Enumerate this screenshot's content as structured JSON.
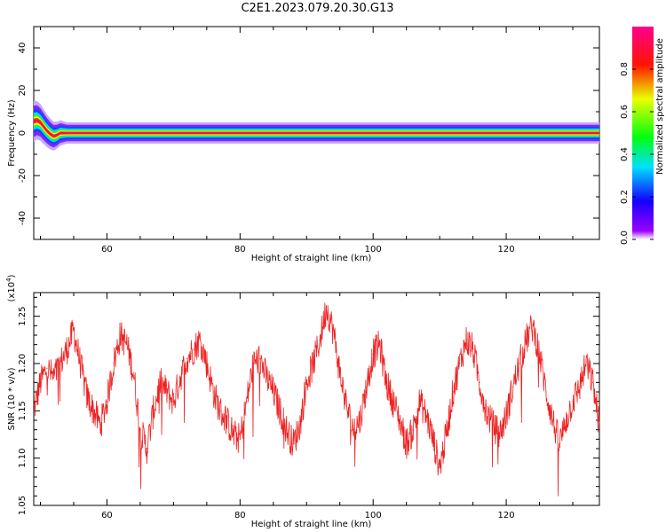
{
  "figure": {
    "title": "C2E1.2023.079.20.30.G13"
  },
  "chart_data": [
    {
      "type": "heatmap",
      "title": "C2E1.2023.079.20.30.G13",
      "xlabel": "Height of straight line (km)",
      "ylabel": "Frequency (Hz)",
      "xlim": [
        49.0,
        134.0
      ],
      "ylim": [
        -50,
        50
      ],
      "xticks": [
        60,
        80,
        100,
        120
      ],
      "yticks": [
        40,
        20,
        0,
        -20,
        -40
      ],
      "colorbar": {
        "label": "Normalized spectral amplitude",
        "range": [
          0.0,
          1.0
        ],
        "ticks": [
          0.0,
          0.2,
          0.4,
          0.6,
          0.8
        ],
        "colormap": "rainbow (violet-blue-cyan-green-yellow-red-magenta)"
      },
      "ridge_frequency": {
        "x": [
          49.0,
          49.5,
          50.0,
          50.5,
          51.0,
          51.5,
          52.0,
          52.5,
          53.0,
          54.0,
          56.0,
          60.0,
          80.0,
          100.0,
          120.0,
          134.0
        ],
        "y": [
          5.5,
          6.0,
          5.0,
          3.0,
          1.0,
          -0.5,
          -1.5,
          -1.0,
          0.0,
          0.0,
          0.0,
          0.0,
          0.0,
          0.0,
          0.0,
          0.0
        ]
      },
      "band_halfwidth_hz": 2.5,
      "grid": false
    },
    {
      "type": "line",
      "xlabel": "Height of straight line (km)",
      "ylabel": "SNR (10 * v/v)",
      "y_multiplier": "(x10^4)",
      "xlim": [
        49.0,
        134.0
      ],
      "ylim": [
        1.05,
        1.275
      ],
      "xticks": [
        60,
        80,
        100,
        120
      ],
      "yticks": [
        1.05,
        1.1,
        1.15,
        1.2,
        1.25
      ],
      "series": [
        {
          "color": "#ee2222",
          "x": [
            49,
            50,
            51,
            52,
            53,
            54,
            55,
            56,
            57,
            58,
            59,
            60,
            61,
            62,
            63,
            64,
            65,
            66,
            67,
            68,
            69,
            70,
            71,
            72,
            73,
            74,
            75,
            76,
            77,
            78,
            79,
            80,
            81,
            82,
            83,
            84,
            85,
            86,
            87,
            88,
            89,
            90,
            91,
            92,
            93,
            94,
            95,
            96,
            97,
            98,
            99,
            100,
            101,
            102,
            103,
            104,
            105,
            106,
            107,
            108,
            109,
            110,
            111,
            112,
            113,
            114,
            115,
            116,
            117,
            118,
            119,
            120,
            121,
            122,
            123,
            124,
            125,
            126,
            127,
            128,
            129,
            130,
            131,
            132,
            133,
            134
          ],
          "y": [
            1.15,
            1.18,
            1.195,
            1.185,
            1.2,
            1.215,
            1.235,
            1.2,
            1.165,
            1.15,
            1.135,
            1.16,
            1.2,
            1.23,
            1.22,
            1.19,
            1.13,
            1.11,
            1.15,
            1.18,
            1.17,
            1.16,
            1.185,
            1.205,
            1.215,
            1.225,
            1.2,
            1.17,
            1.15,
            1.14,
            1.125,
            1.12,
            1.16,
            1.2,
            1.205,
            1.185,
            1.17,
            1.15,
            1.13,
            1.115,
            1.135,
            1.18,
            1.2,
            1.225,
            1.26,
            1.235,
            1.19,
            1.155,
            1.13,
            1.14,
            1.175,
            1.21,
            1.22,
            1.18,
            1.16,
            1.14,
            1.115,
            1.13,
            1.16,
            1.145,
            1.12,
            1.09,
            1.125,
            1.17,
            1.2,
            1.225,
            1.215,
            1.18,
            1.15,
            1.135,
            1.125,
            1.145,
            1.175,
            1.2,
            1.225,
            1.24,
            1.21,
            1.17,
            1.14,
            1.115,
            1.14,
            1.16,
            1.175,
            1.2,
            1.18,
            1.135
          ]
        }
      ],
      "grid": false
    }
  ]
}
